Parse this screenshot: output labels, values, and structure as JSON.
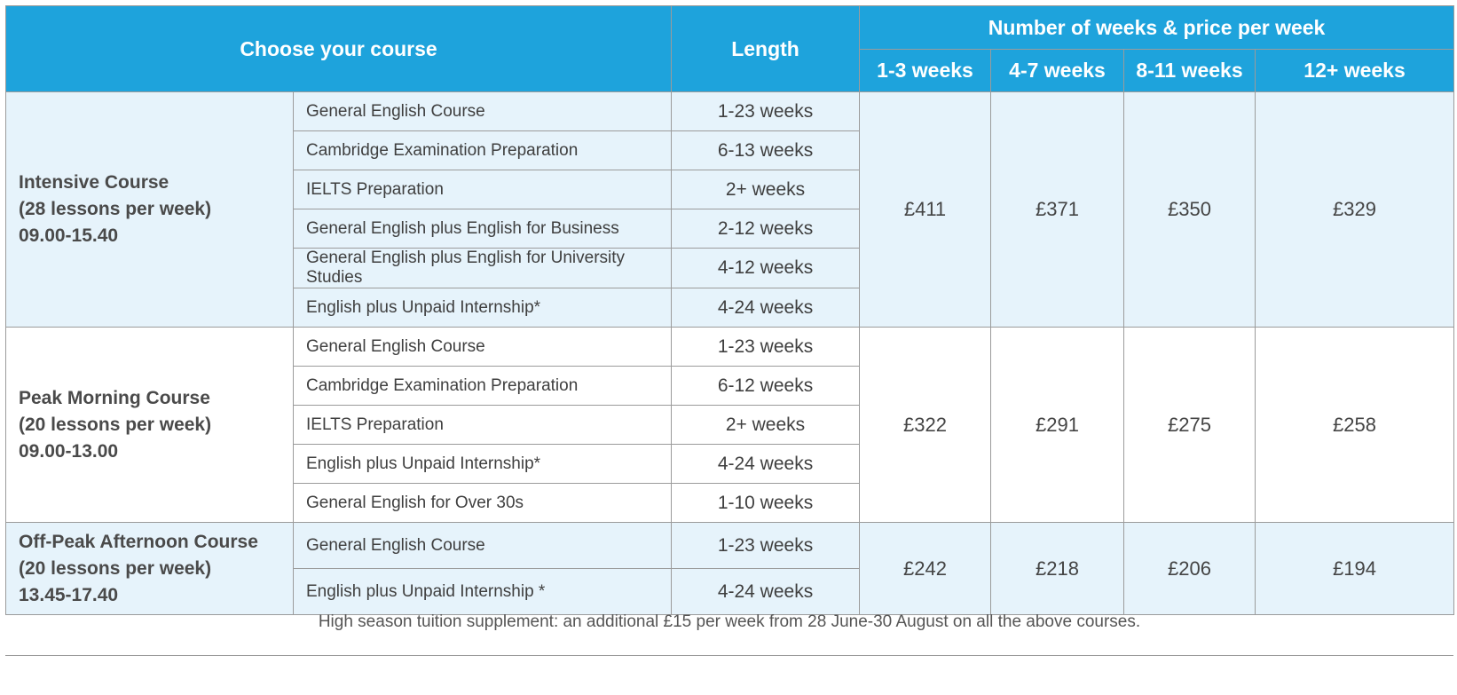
{
  "header": {
    "choose": "Choose your course",
    "length": "Length",
    "weeks_price": "Number of weeks & price per week",
    "bands": [
      "1-3 weeks",
      "4-7 weeks",
      "8-11 weeks",
      "12+ weeks"
    ]
  },
  "groups": [
    {
      "name": "Intensive Course",
      "lessons": "(28 lessons per week)",
      "time": "09.00-15.40",
      "courses": [
        {
          "course": "General English Course",
          "length": "1-23 weeks"
        },
        {
          "course": "Cambridge Examination Preparation",
          "length": "6-13 weeks"
        },
        {
          "course": "IELTS Preparation",
          "length": "2+ weeks"
        },
        {
          "course": "General English plus English for Business",
          "length": "2-12 weeks"
        },
        {
          "course": "General English plus English for University Studies",
          "length": "4-12 weeks"
        },
        {
          "course": "English plus Unpaid Internship*",
          "length": "4-24 weeks"
        }
      ],
      "prices": [
        "£411",
        "£371",
        "£350",
        "£329"
      ]
    },
    {
      "name": "Peak Morning Course",
      "lessons": "(20 lessons per week)",
      "time": "09.00-13.00",
      "courses": [
        {
          "course": "General English Course",
          "length": "1-23 weeks"
        },
        {
          "course": "Cambridge Examination Preparation",
          "length": "6-12 weeks"
        },
        {
          "course": "IELTS Preparation",
          "length": "2+ weeks"
        },
        {
          "course": "English plus Unpaid Internship*",
          "length": "4-24 weeks"
        },
        {
          "course": "General English for Over 30s",
          "length": "1-10 weeks"
        }
      ],
      "prices": [
        "£322",
        "£291",
        "£275",
        "£258"
      ]
    },
    {
      "name": "Off-Peak Afternoon Course",
      "lessons": "(20 lessons per week)",
      "time": "13.45-17.40",
      "courses": [
        {
          "course": "General English Course",
          "length": "1-23 weeks"
        },
        {
          "course": "English plus Unpaid Internship *",
          "length": "4-24 weeks"
        }
      ],
      "prices": [
        "£242",
        "£218",
        "£206",
        "£194"
      ]
    }
  ],
  "note": "High season tuition supplement: an additional £15 per week from 28 June-30 August on all the above courses.",
  "colors": {
    "header_bg": "#1ea3dc",
    "row_tint": "#e6f3fb",
    "border": "#9b9b9b"
  }
}
